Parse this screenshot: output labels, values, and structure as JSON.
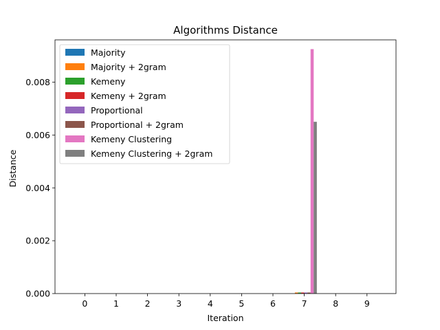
{
  "chart_data": {
    "type": "bar",
    "title": "Algorithms Distance",
    "xlabel": "Iteration",
    "ylabel": "Distance",
    "categories": [
      "0",
      "1",
      "2",
      "3",
      "4",
      "5",
      "6",
      "7",
      "8",
      "9"
    ],
    "ylim": [
      0,
      0.0096
    ],
    "yticks": [
      0.0,
      0.002,
      0.004,
      0.006,
      0.008
    ],
    "ytick_labels": [
      "0.000",
      "0.002",
      "0.004",
      "0.006",
      "0.008"
    ],
    "grid": false,
    "legend_position": "upper-left",
    "series": [
      {
        "name": "Majority",
        "color": "#1f77b4",
        "values": [
          0,
          0,
          0,
          0,
          0,
          0,
          0,
          0,
          0,
          0
        ]
      },
      {
        "name": "Majority + 2gram",
        "color": "#ff7f0e",
        "values": [
          0,
          0,
          0,
          0,
          0,
          0,
          0,
          4e-05,
          0,
          0
        ]
      },
      {
        "name": "Kemeny",
        "color": "#2ca02c",
        "values": [
          0,
          0,
          0,
          0,
          0,
          0,
          0,
          4e-05,
          0,
          0
        ]
      },
      {
        "name": "Kemeny + 2gram",
        "color": "#d62728",
        "values": [
          0,
          0,
          0,
          0,
          0,
          0,
          0,
          4e-05,
          0,
          0
        ]
      },
      {
        "name": "Proportional",
        "color": "#9467bd",
        "values": [
          0,
          0,
          0,
          0,
          0,
          0,
          0,
          4e-05,
          0,
          0
        ]
      },
      {
        "name": "Proportional + 2gram",
        "color": "#8c564b",
        "values": [
          0,
          0,
          0,
          0,
          0,
          0,
          0,
          4e-05,
          0,
          0
        ]
      },
      {
        "name": "Kemeny Clustering",
        "color": "#e377c2",
        "values": [
          0,
          0,
          0,
          0,
          0,
          0,
          0,
          0.00925,
          0,
          0
        ]
      },
      {
        "name": "Kemeny Clustering + 2gram",
        "color": "#7f7f7f",
        "values": [
          0,
          0,
          0,
          0,
          0,
          0,
          0,
          0.0065,
          0,
          0
        ]
      }
    ]
  }
}
